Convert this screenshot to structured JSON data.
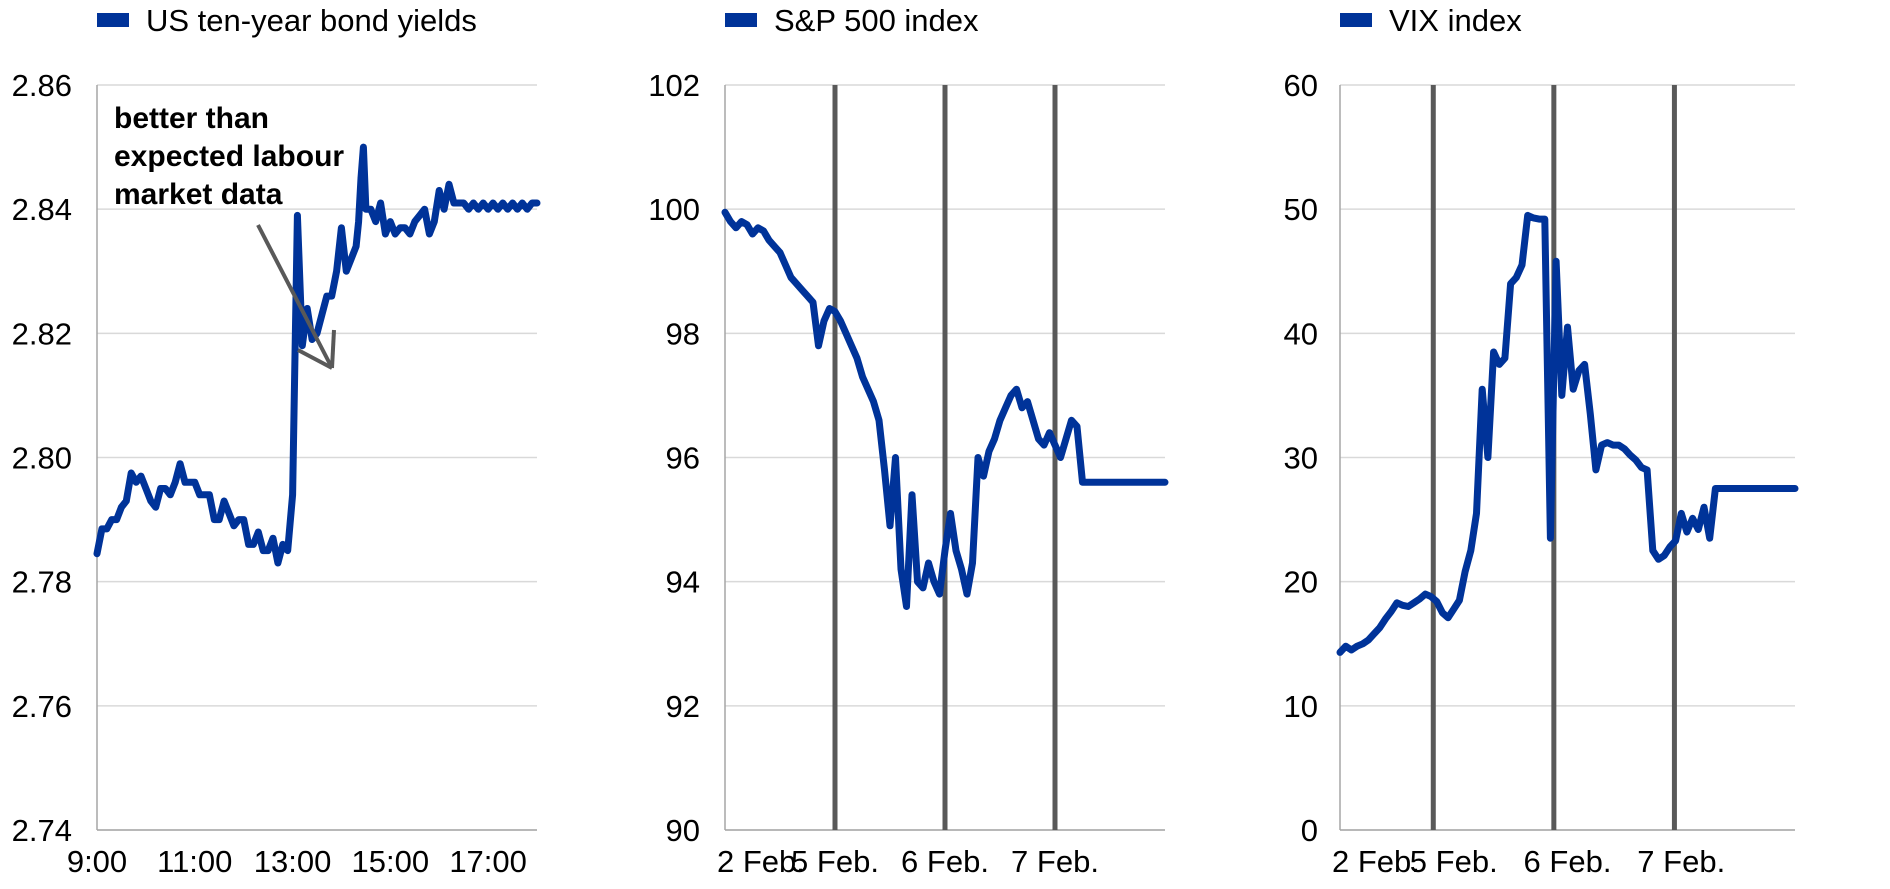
{
  "colors": {
    "series": "#003399",
    "grid": "#d9d9d9",
    "axis": "#a6a6a6",
    "marker": "#595959",
    "arrow": "#595959"
  },
  "chart_data": [
    {
      "type": "line",
      "legend": "US ten-year bond yields",
      "legend_placement": "top-left",
      "grid": true,
      "ylim": [
        2.74,
        2.86
      ],
      "yticks": [
        "2.74",
        "2.76",
        "2.78",
        "2.80",
        "2.82",
        "2.84",
        "2.86"
      ],
      "xlim": [
        9.0,
        18.0
      ],
      "xticks": [
        {
          "label": "9:00",
          "value": 9.0
        },
        {
          "label": "11:00",
          "value": 11.0
        },
        {
          "label": "13:00",
          "value": 13.0
        },
        {
          "label": "15:00",
          "value": 15.0
        },
        {
          "label": "17:00",
          "value": 17.0
        }
      ],
      "annotation": [
        "better than",
        "expected labour",
        "market data"
      ],
      "series": [
        {
          "name": "US ten-year bond yields",
          "x": [
            9.0,
            9.1,
            9.2,
            9.3,
            9.4,
            9.5,
            9.6,
            9.7,
            9.8,
            9.9,
            10.0,
            10.1,
            10.2,
            10.3,
            10.4,
            10.5,
            10.6,
            10.7,
            10.8,
            10.9,
            11.0,
            11.1,
            11.2,
            11.3,
            11.4,
            11.5,
            11.6,
            11.7,
            11.8,
            11.9,
            12.0,
            12.1,
            12.2,
            12.3,
            12.4,
            12.5,
            12.6,
            12.7,
            12.8,
            12.9,
            13.0,
            13.1,
            13.2,
            13.3,
            13.4,
            13.5,
            13.6,
            13.7,
            13.8,
            13.9,
            14.0,
            14.1,
            14.2,
            14.3,
            14.35,
            14.4,
            14.45,
            14.5,
            14.6,
            14.7,
            14.8,
            14.9,
            15.0,
            15.1,
            15.2,
            15.3,
            15.4,
            15.5,
            15.6,
            15.7,
            15.8,
            15.9,
            16.0,
            16.1,
            16.2,
            16.3,
            16.4,
            16.5,
            16.6,
            16.7,
            16.8,
            16.9,
            17.0,
            17.1,
            17.2,
            17.3,
            17.4,
            17.5,
            17.6,
            17.7,
            17.8,
            17.9,
            18.0
          ],
          "y": [
            2.7845,
            2.7885,
            2.7885,
            2.79,
            2.79,
            2.792,
            2.793,
            2.7975,
            2.796,
            2.797,
            2.795,
            2.793,
            2.792,
            2.795,
            2.795,
            2.794,
            2.796,
            2.799,
            2.796,
            2.796,
            2.796,
            2.794,
            2.794,
            2.794,
            2.79,
            2.79,
            2.793,
            2.791,
            2.789,
            2.79,
            2.79,
            2.786,
            2.786,
            2.788,
            2.785,
            2.785,
            2.787,
            2.783,
            2.786,
            2.785,
            2.794,
            2.839,
            2.818,
            2.824,
            2.819,
            2.82,
            2.823,
            2.826,
            2.826,
            2.83,
            2.837,
            2.83,
            2.832,
            2.834,
            2.838,
            2.845,
            2.85,
            2.84,
            2.84,
            2.838,
            2.841,
            2.836,
            2.838,
            2.836,
            2.837,
            2.837,
            2.836,
            2.838,
            2.839,
            2.84,
            2.836,
            2.838,
            2.843,
            2.84,
            2.844,
            2.841,
            2.841,
            2.841,
            2.84,
            2.841,
            2.84,
            2.841,
            2.84,
            2.841,
            2.84,
            2.841,
            2.84,
            2.841,
            2.84,
            2.841,
            2.84,
            2.841,
            2.841
          ]
        }
      ]
    },
    {
      "type": "line",
      "legend": "S&P 500 index",
      "legend_placement": "top-left",
      "grid": true,
      "ylim": [
        90,
        102
      ],
      "yticks": [
        "90",
        "92",
        "94",
        "96",
        "98",
        "100",
        "102"
      ],
      "xlim": [
        0,
        4
      ],
      "xticks": [
        {
          "label": "2 Feb.",
          "value": 0.0
        },
        {
          "label": "5 Feb.",
          "value": 1.0
        },
        {
          "label": "6 Feb.",
          "value": 2.0
        },
        {
          "label": "7 Feb.",
          "value": 3.0
        }
      ],
      "day_separators": [
        1.0,
        2.0,
        3.0
      ],
      "series": [
        {
          "name": "S&P 500 index",
          "x": [
            0.0,
            0.05,
            0.1,
            0.15,
            0.2,
            0.25,
            0.3,
            0.35,
            0.4,
            0.45,
            0.5,
            0.55,
            0.6,
            0.65,
            0.7,
            0.75,
            0.8,
            0.85,
            0.9,
            0.95,
            1.0,
            1.05,
            1.1,
            1.15,
            1.2,
            1.25,
            1.3,
            1.35,
            1.4,
            1.45,
            1.5,
            1.55,
            1.6,
            1.65,
            1.7,
            1.75,
            1.8,
            1.85,
            1.9,
            1.95,
            2.0,
            2.05,
            2.1,
            2.15,
            2.2,
            2.25,
            2.3,
            2.35,
            2.4,
            2.45,
            2.5,
            2.55,
            2.6,
            2.65,
            2.7,
            2.75,
            2.8,
            2.85,
            2.9,
            2.95,
            3.0,
            3.05,
            3.1,
            3.15,
            3.2,
            3.25,
            3.3,
            3.35,
            3.4,
            3.45,
            3.5,
            3.55,
            3.6,
            3.65,
            3.7,
            3.75,
            3.8,
            3.85,
            3.9,
            3.95,
            4.0
          ],
          "y": [
            99.95,
            99.8,
            99.7,
            99.8,
            99.75,
            99.6,
            99.7,
            99.65,
            99.5,
            99.4,
            99.3,
            99.1,
            98.9,
            98.8,
            98.7,
            98.6,
            98.5,
            97.8,
            98.2,
            98.4,
            98.35,
            98.2,
            98.0,
            97.8,
            97.6,
            97.3,
            97.1,
            96.9,
            96.6,
            95.8,
            94.9,
            96.0,
            94.2,
            93.6,
            95.4,
            94.0,
            93.9,
            94.3,
            94.0,
            93.8,
            94.5,
            95.1,
            94.5,
            94.2,
            93.8,
            94.3,
            96.0,
            95.7,
            96.1,
            96.3,
            96.6,
            96.8,
            97.0,
            97.1,
            96.8,
            96.9,
            96.6,
            96.3,
            96.2,
            96.4,
            96.2,
            96.0,
            96.3,
            96.6,
            96.5,
            95.6,
            95.6,
            95.6,
            95.6,
            95.6,
            95.6,
            95.6,
            95.6,
            95.6,
            95.6,
            95.6,
            95.6,
            95.6,
            95.6,
            95.6,
            95.6
          ]
        }
      ]
    },
    {
      "type": "line",
      "legend": "VIX index",
      "legend_placement": "top-left",
      "grid": true,
      "ylim": [
        0,
        60
      ],
      "yticks": [
        "0",
        "10",
        "20",
        "30",
        "40",
        "50",
        "60"
      ],
      "xlim": [
        0,
        4
      ],
      "xticks": [
        {
          "label": "2 Feb.",
          "value": 0.0
        },
        {
          "label": "5 Feb.",
          "value": 1.0
        },
        {
          "label": "6 Feb.",
          "value": 2.0
        },
        {
          "label": "7 Feb.",
          "value": 3.0
        }
      ],
      "day_separators": [
        0.82,
        1.88,
        2.94
      ],
      "series": [
        {
          "name": "VIX index",
          "x": [
            0.0,
            0.05,
            0.1,
            0.15,
            0.2,
            0.25,
            0.3,
            0.35,
            0.4,
            0.45,
            0.5,
            0.55,
            0.6,
            0.65,
            0.7,
            0.75,
            0.8,
            0.85,
            0.9,
            0.95,
            1.0,
            1.05,
            1.1,
            1.15,
            1.2,
            1.25,
            1.3,
            1.35,
            1.4,
            1.45,
            1.5,
            1.55,
            1.6,
            1.65,
            1.7,
            1.75,
            1.8,
            1.85,
            1.9,
            1.95,
            2.0,
            2.05,
            2.1,
            2.15,
            2.2,
            2.25,
            2.3,
            2.35,
            2.4,
            2.45,
            2.5,
            2.55,
            2.6,
            2.65,
            2.7,
            2.75,
            2.8,
            2.85,
            2.9,
            2.95,
            3.0,
            3.05,
            3.1,
            3.15,
            3.2,
            3.25,
            3.3,
            3.35,
            3.4,
            3.45,
            3.5,
            3.55,
            3.6,
            3.65,
            3.7,
            3.75,
            3.8,
            3.85,
            3.9,
            3.95,
            4.0
          ],
          "y": [
            14.3,
            14.8,
            14.5,
            14.8,
            15.0,
            15.3,
            15.8,
            16.3,
            17.0,
            17.6,
            18.3,
            18.1,
            18.0,
            18.3,
            18.6,
            19.0,
            18.8,
            18.4,
            17.5,
            17.1,
            17.8,
            18.5,
            20.8,
            22.5,
            25.5,
            35.5,
            30.0,
            38.5,
            37.5,
            38.0,
            44.0,
            44.5,
            45.5,
            49.5,
            49.3,
            49.2,
            49.2,
            23.5,
            45.8,
            35.0,
            40.5,
            35.5,
            37.0,
            37.5,
            33.5,
            29.0,
            31.0,
            31.2,
            31.0,
            31.0,
            30.7,
            30.2,
            29.8,
            29.2,
            29.0,
            22.5,
            21.8,
            22.1,
            22.8,
            23.3,
            25.5,
            24.0,
            25.1,
            24.2,
            26.0,
            23.5,
            27.5,
            27.5,
            27.5,
            27.5,
            27.5,
            27.5,
            27.5,
            27.5,
            27.5,
            27.5,
            27.5,
            27.5,
            27.5,
            27.5,
            27.5
          ]
        }
      ]
    }
  ]
}
